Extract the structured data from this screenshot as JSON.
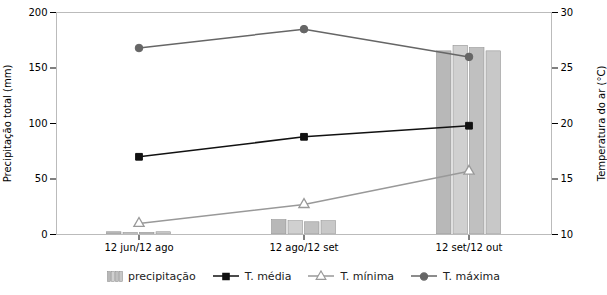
{
  "chart_data": {
    "type": "bar",
    "categories": [
      "12 jun/12 ago",
      "12 ago/12 set",
      "12 set/12 out"
    ],
    "series": [
      {
        "name": "precipitação",
        "type": "bar",
        "colors": [
          "#b8b8b8",
          "#d0d0d0",
          "#c0c0c0",
          "#c8c8c8"
        ],
        "values": [
          [
            2.0,
            1.5,
            1.5,
            2.0
          ],
          [
            13,
            12,
            11,
            12
          ],
          [
            165,
            170,
            168,
            165
          ]
        ]
      },
      {
        "name": "T. média",
        "type": "line",
        "color": "#111111",
        "marker": "square",
        "values": [
          70,
          88,
          98
        ]
      },
      {
        "name": "T. mínima",
        "type": "line",
        "color": "#999999",
        "marker": "triangle-open",
        "values": [
          10,
          27,
          57
        ]
      },
      {
        "name": "T. máxima",
        "type": "line",
        "color": "#666666",
        "marker": "circle",
        "values": [
          168,
          185,
          160
        ]
      }
    ],
    "ylabel": "Precipitação total (mm)",
    "y2label": "Temperatura do ar (°C)",
    "ylim": [
      0,
      200
    ],
    "yticks": [
      0,
      50,
      100,
      150,
      200
    ],
    "y2lim": [
      10,
      30
    ],
    "y2ticks": [
      10,
      15,
      20,
      25,
      30
    ],
    "legend": "bottom",
    "grid": false
  }
}
